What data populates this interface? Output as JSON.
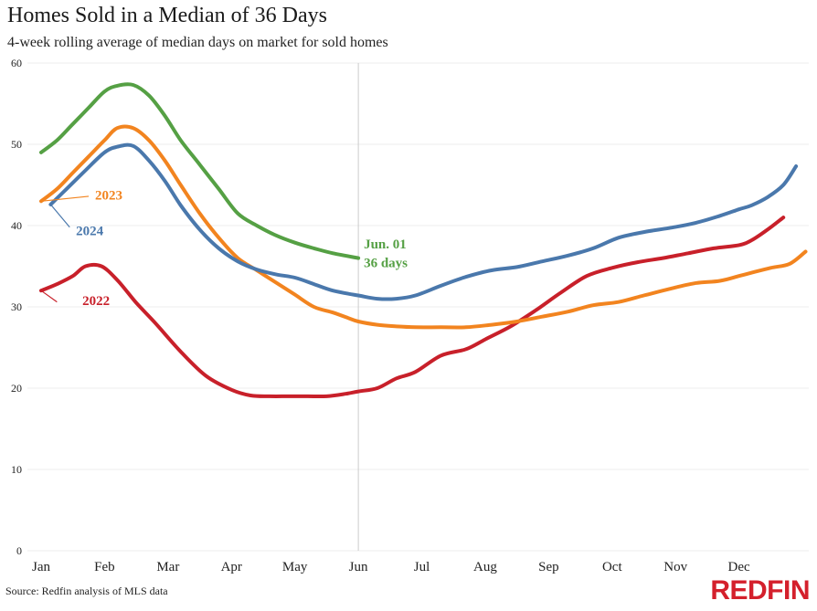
{
  "header": {
    "title": "Homes Sold in a Median of 36 Days",
    "subtitle": "4-week rolling average of median days on market for sold homes"
  },
  "footer": {
    "source": "Source: Redfin analysis of MLS data",
    "logo_text": "REDFIN"
  },
  "colors": {
    "2022": "#c8202a",
    "2023": "#f2841f",
    "2024": "#4a78ac",
    "2025": "#55a044",
    "grid": "#ececec",
    "marker_line": "#cccccc",
    "logo": "#d4202c"
  },
  "chart_data": {
    "type": "line",
    "title": "Homes Sold in a Median of 36 Days",
    "subtitle": "4-week rolling average of median days on market for sold homes",
    "xlabel": "",
    "ylabel": "",
    "ylim": [
      0,
      60
    ],
    "yticks": [
      0,
      10,
      20,
      30,
      40,
      50,
      60
    ],
    "xlim": [
      0,
      12.1
    ],
    "grid": true,
    "xtick_labels": [
      "Jan",
      "Feb",
      "Mar",
      "Apr",
      "May",
      "Jun",
      "Jul",
      "Aug",
      "Sep",
      "Oct",
      "Nov",
      "Dec"
    ],
    "vertical_marker": {
      "x": 5.0
    },
    "annotation": {
      "line1": "Jun. 01",
      "line2": "36 days",
      "color": "#55a044"
    },
    "series": [
      {
        "name": "2022",
        "color": "#c8202a",
        "label": {
          "text": "2022",
          "x": 0.65,
          "y": 30.2,
          "leader_from": [
            0.0,
            32.0
          ],
          "leader_to": [
            0.25,
            30.6
          ]
        },
        "x": [
          0,
          0.25,
          0.5,
          0.7,
          0.95,
          1.2,
          1.5,
          1.8,
          2.2,
          2.6,
          3.0,
          3.3,
          3.6,
          3.9,
          4.2,
          4.5,
          4.8,
          5.0,
          5.3,
          5.6,
          5.9,
          6.3,
          6.7,
          7.0,
          7.4,
          7.8,
          8.2,
          8.6,
          9.0,
          9.4,
          9.8,
          10.2,
          10.6,
          11.0,
          11.2,
          11.45,
          11.7
        ],
        "values": [
          32,
          32.8,
          33.8,
          35,
          35,
          33.3,
          30.5,
          28,
          24.5,
          21.5,
          19.8,
          19.1,
          19,
          19,
          19,
          19,
          19.3,
          19.6,
          20,
          21.2,
          22,
          24,
          24.8,
          26,
          27.6,
          29.6,
          31.8,
          33.8,
          34.8,
          35.5,
          36,
          36.6,
          37.2,
          37.6,
          38.2,
          39.5,
          41
        ]
      },
      {
        "name": "2023",
        "color": "#f2841f",
        "label": {
          "text": "2023",
          "x": 0.85,
          "y": 43.2,
          "leader_from": [
            0.0,
            43.0
          ],
          "leader_to": [
            0.75,
            43.6
          ]
        },
        "x": [
          0,
          0.25,
          0.5,
          0.75,
          1.0,
          1.2,
          1.45,
          1.7,
          1.95,
          2.2,
          2.5,
          2.8,
          3.1,
          3.4,
          3.7,
          4.0,
          4.3,
          4.6,
          4.85,
          5.0,
          5.3,
          5.6,
          5.9,
          6.3,
          6.7,
          7.1,
          7.5,
          7.9,
          8.3,
          8.7,
          9.1,
          9.5,
          9.9,
          10.3,
          10.7,
          11.0,
          11.2,
          11.5,
          11.8,
          12.05
        ],
        "values": [
          43,
          44.5,
          46.5,
          48.5,
          50.5,
          52,
          52,
          50.5,
          48,
          45,
          41.5,
          38.5,
          36,
          34.5,
          33,
          31.5,
          30,
          29.3,
          28.6,
          28.2,
          27.8,
          27.6,
          27.5,
          27.5,
          27.5,
          27.8,
          28.2,
          28.8,
          29.4,
          30.2,
          30.6,
          31.4,
          32.2,
          32.9,
          33.2,
          33.8,
          34.2,
          34.8,
          35.3,
          36.8
        ]
      },
      {
        "name": "2024",
        "color": "#4a78ac",
        "label": {
          "text": "2024",
          "x": 0.55,
          "y": 38.8,
          "leader_from": [
            0.15,
            42.6
          ],
          "leader_to": [
            0.45,
            39.8
          ]
        },
        "x": [
          0.15,
          0.4,
          0.7,
          1.0,
          1.2,
          1.45,
          1.7,
          1.95,
          2.2,
          2.5,
          2.8,
          3.1,
          3.4,
          3.7,
          4.0,
          4.3,
          4.6,
          5.0,
          5.3,
          5.6,
          5.9,
          6.3,
          6.7,
          7.1,
          7.5,
          7.9,
          8.3,
          8.7,
          9.1,
          9.5,
          9.9,
          10.3,
          10.7,
          11.0,
          11.2,
          11.45,
          11.7,
          11.9
        ],
        "values": [
          42.6,
          44.5,
          46.8,
          49,
          49.7,
          49.8,
          48,
          45.5,
          42.5,
          39.5,
          37.2,
          35.6,
          34.6,
          34,
          33.6,
          32.8,
          32,
          31.4,
          31,
          31,
          31.4,
          32.6,
          33.7,
          34.5,
          34.9,
          35.6,
          36.3,
          37.2,
          38.5,
          39.2,
          39.7,
          40.3,
          41.2,
          42,
          42.5,
          43.5,
          45,
          47.3
        ]
      },
      {
        "name": "2025",
        "color": "#55a044",
        "label": {
          "text": "",
          "x": 0,
          "y": 0,
          "leader_from": [
            0,
            0
          ],
          "leader_to": [
            0,
            0
          ]
        },
        "x": [
          0,
          0.25,
          0.5,
          0.75,
          1.0,
          1.2,
          1.45,
          1.7,
          1.95,
          2.2,
          2.5,
          2.8,
          3.1,
          3.4,
          3.7,
          4.0,
          4.3,
          4.6,
          5.0
        ],
        "values": [
          49,
          50.5,
          52.5,
          54.5,
          56.5,
          57.2,
          57.3,
          56,
          53.5,
          50.5,
          47.5,
          44.5,
          41.5,
          40,
          38.8,
          37.9,
          37.2,
          36.6,
          36
        ]
      }
    ]
  }
}
